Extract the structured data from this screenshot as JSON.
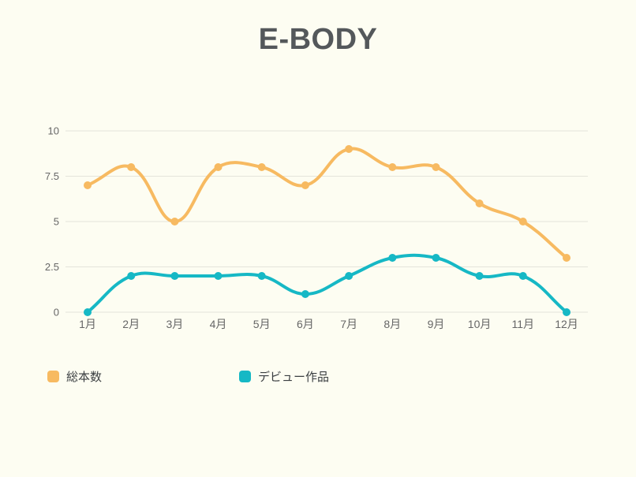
{
  "title": "E-BODY",
  "colors": {
    "background": "#FDFDF2",
    "title_text": "#54585B",
    "grid": "#E4E4DB",
    "tick_label": "#666666",
    "legend_text": "#3A3E41",
    "series_total": "#F7BA61",
    "series_debut": "#16B8C5"
  },
  "chart_data": {
    "type": "line",
    "title": "E-BODY",
    "categories": [
      "1月",
      "2月",
      "3月",
      "4月",
      "5月",
      "6月",
      "7月",
      "8月",
      "9月",
      "10月",
      "11月",
      "12月"
    ],
    "series": [
      {
        "name": "総本数",
        "color": "#F7BA61",
        "values": [
          7,
          8,
          5,
          8,
          8,
          7,
          9,
          8,
          8,
          6,
          5,
          3
        ]
      },
      {
        "name": "デビュー作品",
        "color": "#16B8C5",
        "values": [
          0,
          2,
          2,
          2,
          2,
          1,
          2,
          3,
          3,
          2,
          2,
          0
        ]
      }
    ],
    "xlabel": "",
    "ylabel": "",
    "ylim": [
      0,
      10
    ],
    "y_ticks": [
      0,
      2.5,
      5,
      7.5,
      10
    ],
    "y_tick_labels": [
      "0",
      "2.5",
      "5",
      "7.5",
      "10"
    ],
    "grid": true,
    "legend_position": "bottom-left",
    "line_tension": 0.4,
    "line_width": 4,
    "point_radius": 5
  }
}
